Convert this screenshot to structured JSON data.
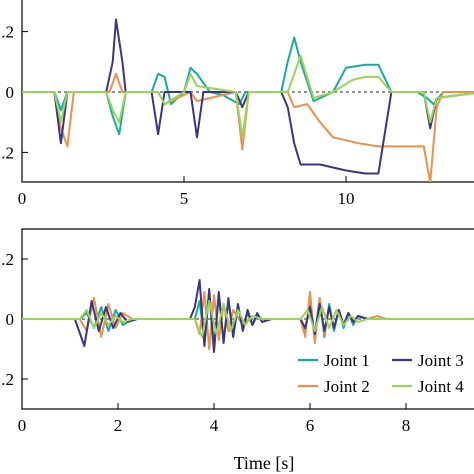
{
  "chart_data": [
    {
      "type": "line",
      "xlabel": "",
      "ylabel": "",
      "xlim": [
        0,
        14.2
      ],
      "ylim": [
        -0.3,
        0.3
      ],
      "xticks": [
        0,
        5,
        10
      ],
      "xtick_labels": [
        "0",
        "5",
        "10"
      ],
      "yticks": [
        0.2,
        0,
        -0.2
      ],
      "ytick_labels": [
        ".2",
        "0",
        ".2"
      ],
      "reference_line": {
        "y": 0,
        "style": "dashed"
      },
      "series": [
        {
          "name": "Joint 1",
          "color": "#1aab9b",
          "x": [
            0,
            1.0,
            1.2,
            1.4,
            2.6,
            2.8,
            3.0,
            3.2,
            4.0,
            4.2,
            4.4,
            4.6,
            5.0,
            5.2,
            5.4,
            5.8,
            6.2,
            6.7,
            6.9,
            7.2,
            8.0,
            8.2,
            8.4,
            8.6,
            9.0,
            9.6,
            10.0,
            10.6,
            11.0,
            11.4,
            12.2,
            12.5,
            12.7,
            13.0,
            14.2
          ],
          "y": [
            0,
            0,
            -0.06,
            0,
            0,
            -0.08,
            -0.14,
            0,
            0,
            0.06,
            0.05,
            -0.04,
            0,
            0.08,
            0.06,
            0,
            -0.01,
            -0.04,
            0,
            0,
            0,
            0.1,
            0.18,
            0.1,
            -0.03,
            0,
            0.08,
            0.09,
            0.09,
            0,
            0,
            -0.02,
            -0.04,
            0,
            0
          ]
        },
        {
          "name": "Joint 2",
          "color": "#e8924a",
          "x": [
            0,
            1.0,
            1.2,
            1.4,
            1.6,
            2.7,
            2.9,
            3.1,
            4.2,
            4.4,
            5.2,
            5.4,
            6.6,
            6.8,
            7.0,
            8.2,
            8.4,
            8.8,
            9.2,
            9.6,
            10.4,
            11.0,
            12.4,
            12.6,
            12.8,
            13.0,
            14.2
          ],
          "y": [
            0,
            0,
            -0.12,
            -0.18,
            0,
            0,
            0.06,
            0,
            0,
            -0.04,
            0,
            -0.03,
            0,
            -0.19,
            0,
            0,
            -0.05,
            -0.04,
            -0.1,
            -0.15,
            -0.17,
            -0.18,
            -0.18,
            -0.3,
            -0.05,
            0,
            0
          ]
        },
        {
          "name": "Joint 3",
          "color": "#3b3582",
          "x": [
            0,
            1.0,
            1.2,
            1.4,
            2.6,
            2.8,
            2.9,
            3.1,
            3.2,
            4.0,
            4.2,
            4.4,
            5.2,
            5.4,
            5.6,
            6.6,
            6.8,
            7.0,
            8.0,
            8.2,
            8.4,
            8.6,
            9.2,
            9.6,
            10.0,
            10.6,
            11.0,
            11.4,
            12.4,
            12.6,
            12.8,
            14.2
          ],
          "y": [
            0,
            0,
            -0.17,
            0,
            0,
            0.1,
            0.24,
            0.1,
            0,
            0,
            -0.14,
            0,
            0,
            -0.15,
            0,
            0,
            -0.05,
            0,
            0,
            -0.05,
            -0.17,
            -0.24,
            -0.24,
            -0.25,
            -0.26,
            -0.27,
            -0.27,
            0,
            0,
            -0.12,
            -0.02,
            0
          ]
        },
        {
          "name": "Joint 4",
          "color": "#9bd45a",
          "x": [
            0,
            1.0,
            1.2,
            1.4,
            2.6,
            2.8,
            3.0,
            3.2,
            4.2,
            4.4,
            5.0,
            5.2,
            5.4,
            6.6,
            6.8,
            7.0,
            8.2,
            8.4,
            8.6,
            9.0,
            9.6,
            10.2,
            10.6,
            11.0,
            11.4,
            12.4,
            12.6,
            12.8,
            14.2
          ],
          "y": [
            0,
            0,
            -0.1,
            0,
            0,
            -0.06,
            -0.1,
            0,
            0,
            -0.04,
            0,
            0.06,
            0.02,
            0,
            -0.15,
            0,
            0,
            0.06,
            0.12,
            -0.02,
            0,
            0.04,
            0.05,
            0.05,
            0,
            0,
            -0.1,
            -0.02,
            0
          ]
        }
      ]
    },
    {
      "type": "line",
      "xlabel": "Time [s]",
      "ylabel": "",
      "xlim": [
        0,
        9.4
      ],
      "ylim": [
        -0.3,
        0.3
      ],
      "xticks": [
        0,
        2,
        4,
        6,
        8
      ],
      "xtick_labels": [
        "0",
        "2",
        "4",
        "6",
        "8"
      ],
      "yticks": [
        0.2,
        0,
        -0.2
      ],
      "ytick_labels": [
        ".2",
        "0",
        ".2"
      ],
      "reference_line": {
        "y": 0,
        "style": "dashed"
      },
      "legend": {
        "position": "bottom-right",
        "columns": 2
      },
      "series": [
        {
          "name": "Joint 1",
          "color": "#1aab9b",
          "x": [
            0,
            1.2,
            1.35,
            1.5,
            1.65,
            1.8,
            1.95,
            2.1,
            2.3,
            3.6,
            3.7,
            3.8,
            3.9,
            4.0,
            4.1,
            4.2,
            4.3,
            4.4,
            4.5,
            4.6,
            4.7,
            4.8,
            4.9,
            5.0,
            5.2,
            5.8,
            5.9,
            6.0,
            6.1,
            6.2,
            6.3,
            6.4,
            6.5,
            6.6,
            6.7,
            6.8,
            6.9,
            7.0,
            7.2,
            9.4
          ],
          "y": [
            0,
            0,
            0.02,
            -0.03,
            0.04,
            -0.04,
            0.03,
            -0.02,
            0,
            0,
            0.06,
            -0.08,
            0.09,
            -0.09,
            0.08,
            -0.07,
            0.06,
            -0.05,
            0.04,
            -0.03,
            0.02,
            -0.02,
            0.01,
            0,
            0,
            0,
            -0.04,
            0.05,
            -0.06,
            0.07,
            -0.06,
            0.05,
            -0.04,
            0.03,
            -0.03,
            0.02,
            -0.02,
            0.01,
            0,
            0
          ]
        },
        {
          "name": "Joint 2",
          "color": "#e8924a",
          "x": [
            0,
            1.2,
            1.35,
            1.5,
            1.65,
            1.8,
            1.95,
            2.1,
            2.3,
            3.6,
            3.7,
            3.8,
            3.9,
            4.0,
            4.1,
            4.2,
            4.3,
            4.4,
            4.6,
            4.8,
            5.0,
            5.8,
            5.9,
            6.0,
            6.1,
            6.2,
            6.3,
            6.4,
            6.5,
            6.6,
            6.7,
            6.8,
            6.9,
            7.0,
            7.2,
            7.4,
            7.6,
            9.4
          ],
          "y": [
            0,
            0,
            -0.04,
            0.07,
            -0.06,
            0.05,
            -0.03,
            0.02,
            0,
            0,
            -0.05,
            0.09,
            -0.1,
            0.08,
            -0.07,
            0.05,
            -0.04,
            0.03,
            -0.02,
            0.01,
            0,
            0,
            -0.06,
            0.09,
            -0.08,
            0.07,
            -0.05,
            0.04,
            -0.03,
            0.03,
            -0.02,
            0.02,
            -0.01,
            0.01,
            0,
            0.01,
            0,
            0
          ]
        },
        {
          "name": "Joint 3",
          "color": "#3b3582",
          "x": [
            0,
            1.1,
            1.3,
            1.45,
            1.6,
            1.75,
            1.9,
            2.05,
            2.2,
            2.4,
            3.5,
            3.6,
            3.7,
            3.8,
            3.9,
            4.0,
            4.1,
            4.2,
            4.3,
            4.4,
            4.5,
            4.6,
            4.7,
            4.8,
            4.9,
            5.0,
            5.2,
            5.8,
            5.9,
            6.0,
            6.1,
            6.2,
            6.3,
            6.4,
            6.5,
            6.6,
            6.7,
            6.8,
            6.9,
            7.0,
            7.2,
            9.4
          ],
          "y": [
            0,
            0,
            -0.09,
            0.06,
            -0.04,
            0.04,
            -0.03,
            0.02,
            -0.01,
            0,
            0,
            0.04,
            0.13,
            -0.09,
            0.1,
            -0.11,
            0.09,
            -0.08,
            0.07,
            -0.06,
            0.05,
            -0.04,
            0.03,
            -0.02,
            0.02,
            -0.01,
            0,
            0,
            -0.03,
            0.04,
            -0.05,
            0.05,
            -0.04,
            0.04,
            -0.03,
            0.03,
            -0.02,
            0.02,
            -0.01,
            0.01,
            0,
            0
          ]
        },
        {
          "name": "Joint 4",
          "color": "#9bd45a",
          "x": [
            0,
            1.2,
            1.35,
            1.5,
            1.65,
            1.8,
            1.95,
            2.1,
            2.3,
            3.6,
            3.75,
            3.9,
            4.05,
            4.2,
            4.35,
            4.5,
            4.65,
            4.8,
            5.0,
            5.8,
            5.95,
            6.1,
            6.25,
            6.4,
            6.55,
            6.7,
            6.85,
            7.0,
            7.2,
            9.4
          ],
          "y": [
            0,
            0,
            0.03,
            -0.03,
            0.02,
            -0.02,
            0.01,
            -0.01,
            0,
            0,
            -0.06,
            0.06,
            -0.05,
            0.05,
            -0.04,
            0.03,
            -0.02,
            0.01,
            0,
            0,
            0.03,
            -0.04,
            0.04,
            -0.03,
            0.03,
            -0.02,
            0.01,
            -0.01,
            0,
            0
          ]
        }
      ]
    }
  ]
}
